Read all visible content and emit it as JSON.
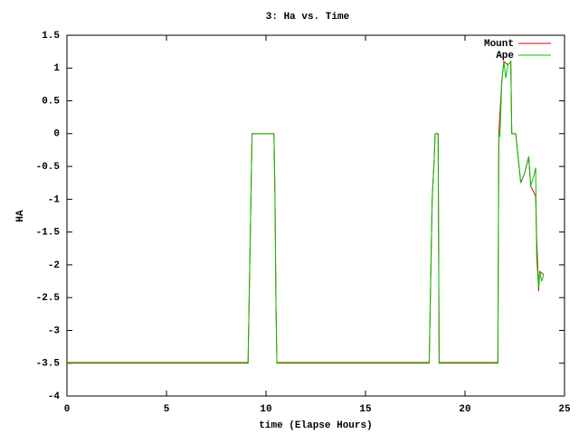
{
  "chart_data": {
    "type": "line",
    "title": "3: Ha vs. Time",
    "x_label": "time (Elapse Hours)",
    "y_label": "HA",
    "xlim": [
      0,
      25
    ],
    "ylim": [
      -4,
      1.5
    ],
    "xticks": [
      0,
      5,
      10,
      15,
      20,
      25
    ],
    "yticks": [
      1.5,
      1,
      0.5,
      0,
      -0.5,
      -1,
      -1.5,
      -2,
      -2.5,
      -3,
      -3.5,
      -4
    ],
    "legend": "top-right",
    "series": [
      {
        "name": "Mount",
        "color": "#e00000",
        "x": [
          0,
          9.1,
          9.15,
          9.25,
          9.3,
          10.4,
          10.45,
          10.5,
          10.55,
          18.2,
          18.35,
          18.45,
          18.5,
          18.65,
          18.7,
          21.65,
          21.7,
          21.85,
          21.95,
          22.15,
          22.3,
          22.35,
          22.55,
          22.8,
          23.0,
          23.2,
          23.3,
          23.55,
          23.6,
          23.7,
          23.75,
          23.95
        ],
        "values": [
          -3.49,
          -3.49,
          -2.6,
          -0.9,
          0,
          0,
          -0.9,
          -2.6,
          -3.49,
          -3.49,
          -1.0,
          -0.4,
          0,
          0,
          -3.49,
          -3.49,
          0,
          0.8,
          1.1,
          1.05,
          1.1,
          0,
          0,
          -0.75,
          -0.6,
          -0.35,
          -0.8,
          -0.95,
          -1.6,
          -2.4,
          -2.1,
          -2.15
        ]
      },
      {
        "name": "Ape",
        "color": "#00c000",
        "x": [
          0,
          9.1,
          9.15,
          9.25,
          9.3,
          10.4,
          10.45,
          10.5,
          10.55,
          18.2,
          18.35,
          18.45,
          18.5,
          18.65,
          18.7,
          21.65,
          21.7,
          21.75,
          21.85,
          21.95,
          22.05,
          22.15,
          22.3,
          22.35,
          22.55,
          22.65,
          22.8,
          23.0,
          23.2,
          23.3,
          23.45,
          23.55,
          23.6,
          23.7,
          23.75,
          23.85,
          23.95
        ],
        "values": [
          -3.5,
          -3.5,
          -2.6,
          -0.9,
          0,
          0,
          -0.9,
          -2.6,
          -3.5,
          -3.5,
          -1.0,
          -0.4,
          0,
          0,
          -3.5,
          -3.5,
          0,
          -0.05,
          0.8,
          1.1,
          0.85,
          1.05,
          1.1,
          0,
          0,
          -0.3,
          -0.75,
          -0.6,
          -0.35,
          -0.8,
          -0.65,
          -0.52,
          -1.9,
          -2.35,
          -2.1,
          -2.25,
          -2.15
        ]
      }
    ]
  }
}
